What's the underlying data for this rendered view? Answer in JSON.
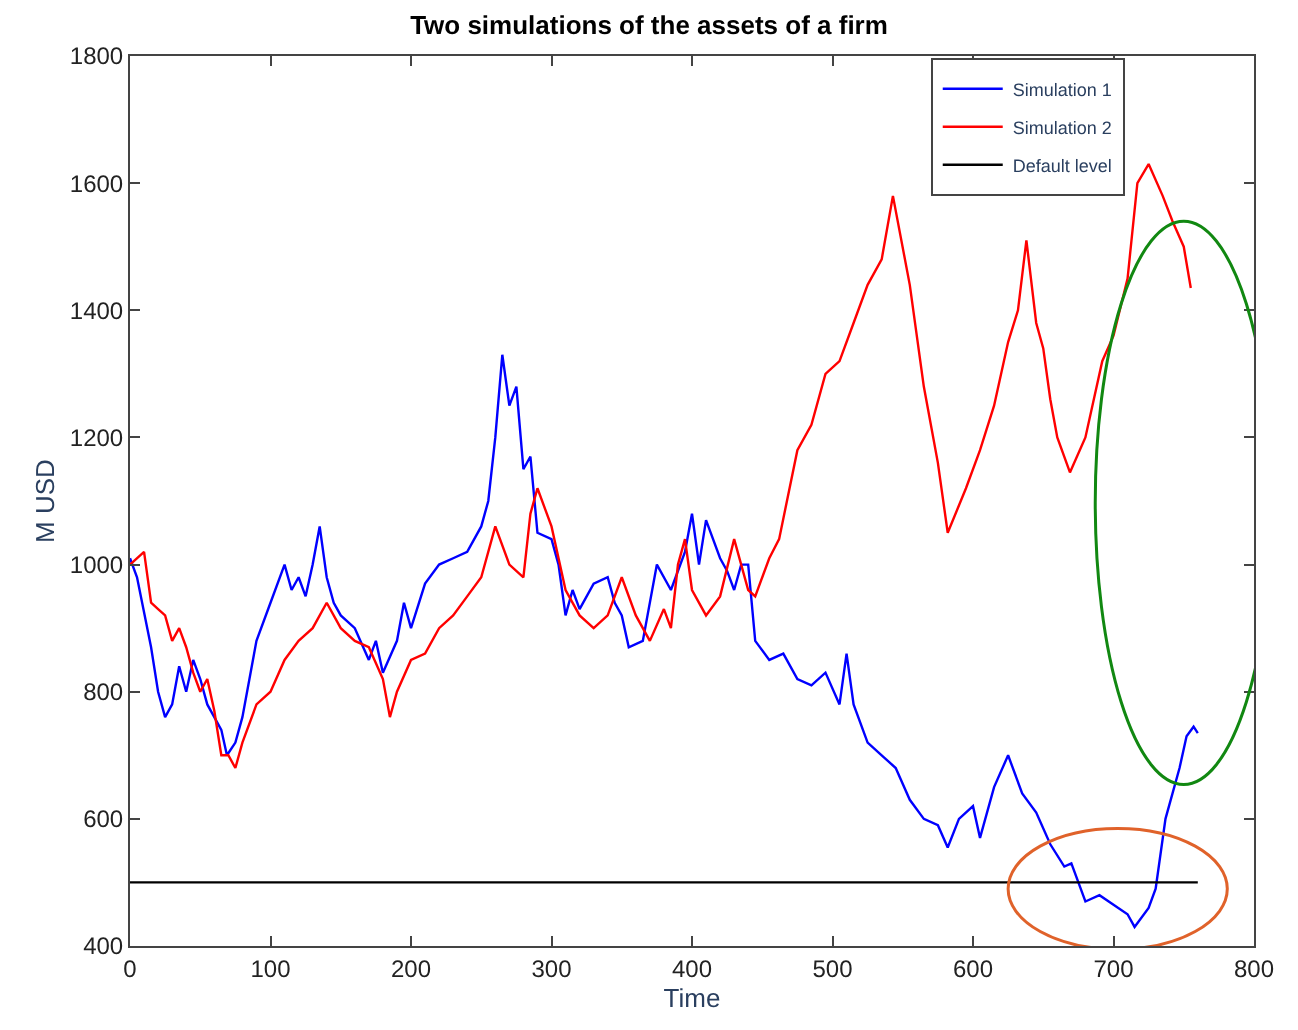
{
  "chart_data": {
    "type": "line",
    "title": "Two simulations of the assets of a firm",
    "xlabel": "Time",
    "ylabel": "M USD",
    "xlim": [
      0,
      800
    ],
    "ylim": [
      400,
      1800
    ],
    "xticks": [
      0,
      100,
      200,
      300,
      400,
      500,
      600,
      700,
      800
    ],
    "yticks": [
      400,
      600,
      800,
      1000,
      1200,
      1400,
      1600,
      1800
    ],
    "legend": "top right",
    "marker": "none",
    "line_style": "solid",
    "series": [
      {
        "name": "Simulation 1",
        "color": "#0000ff",
        "x": [
          0,
          5,
          15,
          20,
          25,
          30,
          35,
          40,
          45,
          50,
          55,
          60,
          65,
          69,
          75,
          80,
          90,
          100,
          110,
          115,
          120,
          125,
          130,
          135,
          140,
          145,
          150,
          160,
          170,
          175,
          180,
          190,
          195,
          200,
          210,
          220,
          230,
          240,
          250,
          255,
          260,
          265,
          270,
          275,
          280,
          285,
          290,
          300,
          305,
          310,
          315,
          320,
          330,
          340,
          345,
          350,
          355,
          365,
          375,
          385,
          395,
          400,
          405,
          410,
          420,
          425,
          430,
          435,
          440,
          445,
          455,
          465,
          475,
          485,
          495,
          505,
          510,
          515,
          525,
          535,
          545,
          555,
          565,
          575,
          582,
          590,
          600,
          605,
          615,
          625,
          635,
          645,
          655,
          665,
          670,
          680,
          690,
          700,
          710,
          715,
          725,
          730,
          737,
          747,
          752,
          757,
          760
        ],
        "values": [
          1010,
          980,
          870,
          800,
          760,
          780,
          840,
          800,
          850,
          820,
          780,
          760,
          740,
          700,
          720,
          760,
          880,
          940,
          1000,
          960,
          980,
          950,
          1000,
          1060,
          980,
          940,
          920,
          900,
          850,
          880,
          830,
          880,
          940,
          900,
          970,
          1000,
          1010,
          1020,
          1060,
          1100,
          1200,
          1330,
          1250,
          1280,
          1150,
          1170,
          1050,
          1040,
          1000,
          920,
          960,
          930,
          970,
          980,
          940,
          920,
          870,
          880,
          1000,
          960,
          1020,
          1080,
          1000,
          1070,
          1010,
          990,
          960,
          1000,
          1000,
          880,
          850,
          860,
          820,
          810,
          830,
          780,
          860,
          780,
          720,
          700,
          680,
          630,
          600,
          590,
          555,
          600,
          620,
          570,
          650,
          700,
          640,
          610,
          560,
          525,
          530,
          470,
          480,
          465,
          450,
          430,
          460,
          490,
          600,
          680,
          730,
          745,
          735
        ]
      },
      {
        "name": "Simulation 2",
        "color": "#ff0000",
        "x": [
          0,
          10,
          15,
          20,
          25,
          30,
          35,
          40,
          45,
          50,
          55,
          60,
          65,
          70,
          75,
          80,
          90,
          100,
          110,
          120,
          130,
          140,
          150,
          160,
          170,
          180,
          185,
          190,
          200,
          210,
          220,
          230,
          240,
          250,
          260,
          270,
          280,
          285,
          290,
          300,
          310,
          320,
          330,
          340,
          350,
          360,
          370,
          380,
          385,
          390,
          395,
          400,
          410,
          420,
          430,
          440,
          445,
          455,
          462,
          475,
          485,
          495,
          505,
          515,
          525,
          535,
          543,
          555,
          565,
          575,
          582,
          595,
          605,
          615,
          625,
          632,
          638,
          645,
          650,
          655,
          660,
          669,
          680,
          692,
          700,
          710,
          717,
          725,
          735,
          742,
          750,
          755
        ],
        "values": [
          1000,
          1020,
          940,
          930,
          920,
          880,
          900,
          870,
          830,
          800,
          820,
          770,
          700,
          700,
          680,
          720,
          780,
          800,
          850,
          880,
          900,
          940,
          900,
          880,
          870,
          820,
          760,
          800,
          850,
          860,
          900,
          920,
          950,
          980,
          1060,
          1000,
          980,
          1080,
          1120,
          1060,
          960,
          920,
          900,
          920,
          980,
          920,
          880,
          930,
          900,
          1000,
          1040,
          960,
          920,
          950,
          1040,
          960,
          950,
          1010,
          1040,
          1180,
          1220,
          1300,
          1320,
          1380,
          1440,
          1480,
          1580,
          1440,
          1280,
          1160,
          1050,
          1120,
          1180,
          1250,
          1350,
          1400,
          1510,
          1380,
          1340,
          1260,
          1200,
          1145,
          1200,
          1320,
          1360,
          1450,
          1600,
          1630,
          1580,
          1540,
          1500,
          1435
        ]
      },
      {
        "name": "Default level",
        "color": "#000000",
        "x": [
          0,
          760
        ],
        "values": [
          500,
          500
        ]
      }
    ]
  }
}
